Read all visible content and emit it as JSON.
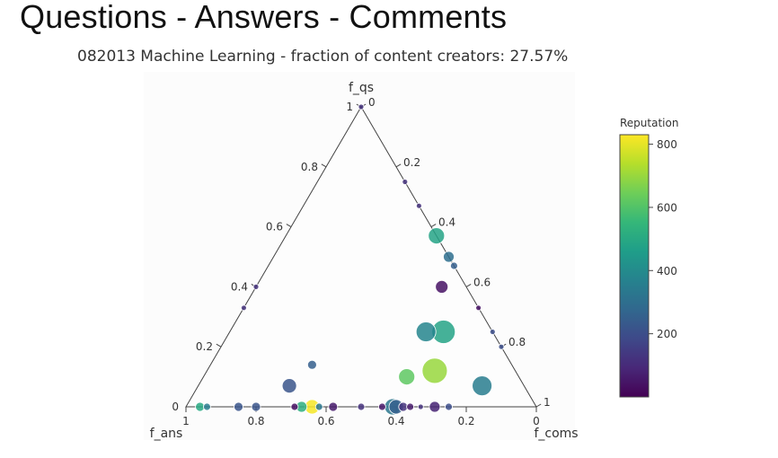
{
  "page": {
    "heading": "Questions - Answers - Comments"
  },
  "chart_data": {
    "type": "scatter",
    "subtype": "ternary",
    "title": "082013 Machine Learning - fraction of content creators: 27.57%",
    "axes": {
      "a": {
        "label": "f_qs",
        "ticks": [
          0,
          0.2,
          0.4,
          0.6,
          0.8,
          1
        ],
        "tick_labels": [
          "0",
          "0.2",
          "0.4",
          "0.6",
          "0.8",
          "1"
        ]
      },
      "b": {
        "label": "f_ans",
        "ticks": [
          0,
          0.2,
          0.4,
          0.6,
          0.8,
          1
        ],
        "tick_labels": [
          "0",
          "0.2",
          "0.4",
          "0.6",
          "0.8",
          "1"
        ]
      },
      "c": {
        "label": "f_coms",
        "ticks": [
          0,
          0.2,
          0.4,
          0.6,
          0.8,
          1
        ],
        "tick_labels": [
          "0",
          "0.2",
          "0.4",
          "0.6",
          "0.8",
          "1"
        ]
      }
    },
    "colorbar": {
      "title": "Reputation",
      "colorscale": "viridis",
      "range": [
        0,
        830
      ],
      "ticks": [
        200,
        400,
        600,
        800
      ],
      "tick_labels": [
        "200",
        "400",
        "600",
        "800"
      ]
    },
    "points": [
      {
        "f_qs": 1.0,
        "f_ans": 0.0,
        "f_coms": 0.0,
        "reputation": 120,
        "size": 3
      },
      {
        "f_qs": 0.75,
        "f_ans": 0.0,
        "f_coms": 0.25,
        "reputation": 120,
        "size": 3
      },
      {
        "f_qs": 0.67,
        "f_ans": 0.0,
        "f_coms": 0.33,
        "reputation": 120,
        "size": 3
      },
      {
        "f_qs": 0.57,
        "f_ans": 0.0,
        "f_coms": 0.43,
        "reputation": 480,
        "size": 9
      },
      {
        "f_qs": 0.5,
        "f_ans": 0.0,
        "f_coms": 0.5,
        "reputation": 300,
        "size": 6
      },
      {
        "f_qs": 0.47,
        "f_ans": 0.0,
        "f_coms": 0.53,
        "reputation": 250,
        "size": 4
      },
      {
        "f_qs": 0.4,
        "f_ans": 0.07,
        "f_coms": 0.53,
        "reputation": 40,
        "size": 7
      },
      {
        "f_qs": 0.33,
        "f_ans": 0.0,
        "f_coms": 0.67,
        "reputation": 40,
        "size": 3
      },
      {
        "f_qs": 0.25,
        "f_ans": 0.0,
        "f_coms": 0.75,
        "reputation": 200,
        "size": 3
      },
      {
        "f_qs": 0.2,
        "f_ans": 0.0,
        "f_coms": 0.8,
        "reputation": 200,
        "size": 3
      },
      {
        "f_qs": 0.25,
        "f_ans": 0.19,
        "f_coms": 0.56,
        "reputation": 380,
        "size": 11
      },
      {
        "f_qs": 0.25,
        "f_ans": 0.14,
        "f_coms": 0.61,
        "reputation": 480,
        "size": 13
      },
      {
        "f_qs": 0.12,
        "f_ans": 0.23,
        "f_coms": 0.65,
        "reputation": 700,
        "size": 14
      },
      {
        "f_qs": 0.1,
        "f_ans": 0.32,
        "f_coms": 0.58,
        "reputation": 620,
        "size": 9
      },
      {
        "f_qs": 0.07,
        "f_ans": 0.12,
        "f_coms": 0.81,
        "reputation": 350,
        "size": 11
      },
      {
        "f_qs": 0.14,
        "f_ans": 0.57,
        "f_coms": 0.29,
        "reputation": 250,
        "size": 5
      },
      {
        "f_qs": 0.07,
        "f_ans": 0.67,
        "f_coms": 0.26,
        "reputation": 220,
        "size": 8
      },
      {
        "f_qs": 0.4,
        "f_ans": 0.6,
        "f_coms": 0.0,
        "reputation": 120,
        "size": 3
      },
      {
        "f_qs": 0.33,
        "f_ans": 0.67,
        "f_coms": 0.0,
        "reputation": 120,
        "size": 3
      },
      {
        "f_qs": 0.0,
        "f_ans": 0.96,
        "f_coms": 0.04,
        "reputation": 500,
        "size": 5
      },
      {
        "f_qs": 0.0,
        "f_ans": 0.94,
        "f_coms": 0.06,
        "reputation": 350,
        "size": 4
      },
      {
        "f_qs": 0.0,
        "f_ans": 0.85,
        "f_coms": 0.15,
        "reputation": 220,
        "size": 5
      },
      {
        "f_qs": 0.0,
        "f_ans": 0.8,
        "f_coms": 0.2,
        "reputation": 220,
        "size": 5
      },
      {
        "f_qs": 0.0,
        "f_ans": 0.69,
        "f_coms": 0.31,
        "reputation": 30,
        "size": 4
      },
      {
        "f_qs": 0.0,
        "f_ans": 0.67,
        "f_coms": 0.33,
        "reputation": 520,
        "size": 6
      },
      {
        "f_qs": 0.0,
        "f_ans": 0.64,
        "f_coms": 0.36,
        "reputation": 820,
        "size": 8
      },
      {
        "f_qs": 0.0,
        "f_ans": 0.62,
        "f_coms": 0.38,
        "reputation": 330,
        "size": 4
      },
      {
        "f_qs": 0.0,
        "f_ans": 0.58,
        "f_coms": 0.42,
        "reputation": 60,
        "size": 5
      },
      {
        "f_qs": 0.0,
        "f_ans": 0.5,
        "f_coms": 0.5,
        "reputation": 120,
        "size": 4
      },
      {
        "f_qs": 0.0,
        "f_ans": 0.44,
        "f_coms": 0.56,
        "reputation": 50,
        "size": 4
      },
      {
        "f_qs": 0.0,
        "f_ans": 0.41,
        "f_coms": 0.59,
        "reputation": 330,
        "size": 9
      },
      {
        "f_qs": 0.0,
        "f_ans": 0.4,
        "f_coms": 0.6,
        "reputation": 250,
        "size": 8
      },
      {
        "f_qs": 0.0,
        "f_ans": 0.38,
        "f_coms": 0.62,
        "reputation": 120,
        "size": 5
      },
      {
        "f_qs": 0.0,
        "f_ans": 0.36,
        "f_coms": 0.64,
        "reputation": 60,
        "size": 4
      },
      {
        "f_qs": 0.0,
        "f_ans": 0.33,
        "f_coms": 0.67,
        "reputation": 120,
        "size": 3
      },
      {
        "f_qs": 0.0,
        "f_ans": 0.29,
        "f_coms": 0.71,
        "reputation": 80,
        "size": 6
      },
      {
        "f_qs": 0.0,
        "f_ans": 0.25,
        "f_coms": 0.75,
        "reputation": 200,
        "size": 4
      }
    ]
  }
}
